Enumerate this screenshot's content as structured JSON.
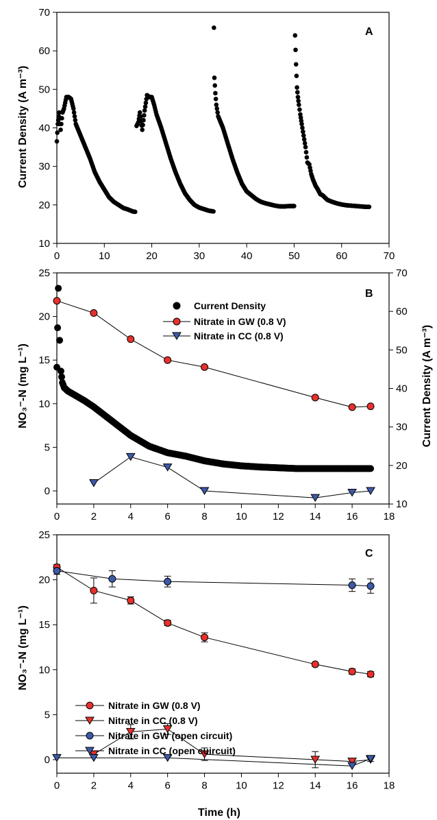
{
  "chart_data": [
    {
      "panel": "A",
      "type": "scatter",
      "ylabel": "Current Density (A m⁻³)",
      "xlim": [
        0,
        70
      ],
      "ylim": [
        10,
        70
      ],
      "xticks": [
        "0",
        "10",
        "20",
        "30",
        "40",
        "50",
        "60",
        "70"
      ],
      "yticks": [
        "10",
        "20",
        "30",
        "40",
        "50",
        "60",
        "70"
      ],
      "series": [
        {
          "label": "Current Density",
          "marker": "circle",
          "color": "#000000",
          "cycles": [
            {
              "x": [
                0,
                0.2,
                0.5,
                0.8,
                1.2,
                1.5,
                2,
                2.5,
                3,
                3.5,
                4,
                5,
                6,
                7,
                8,
                9,
                10,
                11,
                12,
                13,
                14,
                15,
                16,
                16.5
              ],
              "y": [
                36.5,
                41,
                44,
                39.5,
                44,
                45,
                48,
                48,
                47.5,
                45,
                41,
                38,
                35,
                32,
                28.5,
                26,
                24,
                22,
                20.8,
                20,
                19.2,
                18.8,
                18.3,
                18.2
              ]
            },
            {
              "x": [
                16.8,
                17.2,
                17.5,
                18,
                18.5,
                19,
                19.5,
                20,
                20.5,
                21,
                22,
                23,
                24,
                25,
                26,
                27,
                28,
                29,
                30,
                31,
                32,
                33
              ],
              "y": [
                40.5,
                41.5,
                44,
                39.5,
                44.5,
                48.5,
                48,
                48,
                46,
                43.5,
                40,
                36,
                32,
                28.5,
                25.5,
                23,
                21.3,
                20,
                19.3,
                18.9,
                18.5,
                18.3
              ]
            },
            {
              "x": [
                33.1,
                33.2,
                33.4,
                33.6,
                34,
                34.5,
                35,
                36,
                37,
                38,
                39,
                40,
                41,
                42,
                43,
                44,
                45,
                46,
                47,
                48,
                49,
                50
              ],
              "y": [
                66,
                53,
                49,
                46,
                43,
                41.5,
                40,
                36,
                32,
                28.5,
                25.5,
                23.5,
                22.5,
                21.5,
                20.8,
                20.4,
                20.1,
                19.8,
                19.6,
                19.6,
                19.7,
                19.7
              ]
            },
            {
              "x": [
                50.2,
                50.4,
                50.6,
                50.8,
                51,
                51.3,
                51.6,
                52,
                52.4,
                52.8,
                53.2,
                53.6,
                54,
                54.5,
                55,
                55.5,
                56,
                57,
                58,
                59,
                60,
                61,
                62,
                63,
                64,
                65,
                65.8
              ],
              "y": [
                64,
                56.5,
                50.5,
                48,
                46,
                43.5,
                41,
                38,
                35,
                31,
                30.5,
                28,
                26.5,
                25,
                24,
                22.8,
                22.5,
                21.3,
                20.8,
                20.4,
                20.1,
                19.9,
                19.8,
                19.7,
                19.6,
                19.5,
                19.5
              ]
            }
          ]
        }
      ]
    },
    {
      "panel": "B",
      "type": "line",
      "ylabel": "NO₃⁻-N (mg L⁻¹)",
      "y2label": "Current Density (A m⁻³)",
      "xlim": [
        0,
        18
      ],
      "ylim": [
        -1.5,
        25
      ],
      "y2lim": [
        10,
        70
      ],
      "xticks": [
        "0",
        "2",
        "4",
        "6",
        "8",
        "10",
        "12",
        "14",
        "16",
        "18"
      ],
      "yticks": [
        "0",
        "5",
        "10",
        "15",
        "20",
        "25"
      ],
      "y2ticks": [
        "10",
        "20",
        "30",
        "40",
        "50",
        "60",
        "70"
      ],
      "legend_position": "top-center",
      "series": [
        {
          "name": "Current Density",
          "axis": "right",
          "marker": "circle-dense",
          "color": "#000000",
          "x": [
            0,
            0.08,
            0.15,
            0.22,
            0.3,
            0.4,
            0.6,
            1,
            1.5,
            2,
            3,
            4,
            5,
            6,
            7,
            8,
            9,
            10,
            11,
            12,
            13,
            14,
            15,
            16,
            17
          ],
          "y": [
            45.5,
            66,
            52.5,
            44.5,
            41.5,
            40.2,
            39.3,
            38.2,
            36.8,
            35.2,
            31.5,
            27.8,
            25,
            23.3,
            22.4,
            21.2,
            20.4,
            19.9,
            19.6,
            19.4,
            19.2,
            19.2,
            19.2,
            19.2,
            19.2
          ]
        },
        {
          "name": "Nitrate in GW (0.8 V)",
          "axis": "left",
          "marker": "circle",
          "color": "#e8302c",
          "x": [
            0,
            2,
            4,
            6,
            8,
            14,
            16,
            17
          ],
          "y": [
            21.8,
            20.4,
            17.4,
            15.0,
            14.2,
            10.7,
            9.6,
            9.7
          ]
        },
        {
          "name": "Nitrate in CC (0.8 V)",
          "axis": "left",
          "marker": "triangle-down",
          "color": "#3d59a8",
          "x": [
            2,
            4,
            6,
            8,
            14,
            16,
            17
          ],
          "y": [
            0.9,
            3.9,
            2.7,
            0.0,
            -0.8,
            -0.2,
            0.0
          ]
        }
      ]
    },
    {
      "panel": "C",
      "type": "line",
      "xlabel": "Time (h)",
      "ylabel": "NO₃⁻-N (mg L⁻¹)",
      "xlim": [
        0,
        18
      ],
      "ylim": [
        -1.5,
        25
      ],
      "xticks": [
        "0",
        "2",
        "4",
        "6",
        "8",
        "10",
        "12",
        "14",
        "16",
        "18"
      ],
      "yticks": [
        "0",
        "5",
        "10",
        "15",
        "20",
        "25"
      ],
      "legend_position": "lower-left",
      "series": [
        {
          "name": "Nitrate in GW (0.8 V)",
          "marker": "circle",
          "color": "#e8302c",
          "x": [
            0,
            2,
            4,
            6,
            8,
            14,
            16,
            17
          ],
          "y": [
            21.4,
            18.8,
            17.7,
            15.2,
            13.6,
            10.6,
            9.8,
            9.5
          ],
          "err": [
            0.3,
            1.4,
            0.4,
            0.3,
            0.5,
            0.2,
            0.3,
            0.3
          ]
        },
        {
          "name": "Nitrate in CC (0.8 V)",
          "marker": "triangle-down",
          "color": "#e8302c",
          "x": [
            2,
            4,
            6,
            8,
            14,
            16,
            17
          ],
          "y": [
            0.6,
            3.1,
            3.4,
            0.6,
            0.0,
            -0.2,
            0.0
          ],
          "err": [
            0.2,
            0.8,
            0.6,
            0.7,
            0.9,
            0.2,
            0.2
          ]
        },
        {
          "name": "Nitrate in GW (open circuit)",
          "marker": "circle",
          "color": "#3d59a8",
          "x": [
            0,
            3,
            6,
            16,
            17
          ],
          "y": [
            21.0,
            20.1,
            19.8,
            19.4,
            19.3
          ],
          "err": [
            0.4,
            0.9,
            0.6,
            0.7,
            0.8
          ]
        },
        {
          "name": "Nitrate in CC (open cuircuit)",
          "marker": "triangle-down",
          "color": "#3d59a8",
          "x": [
            0,
            2,
            6,
            16,
            17
          ],
          "y": [
            0.2,
            0.2,
            0.2,
            -0.7,
            0.1
          ],
          "err": [
            0,
            0,
            0,
            0,
            0
          ]
        }
      ]
    }
  ]
}
